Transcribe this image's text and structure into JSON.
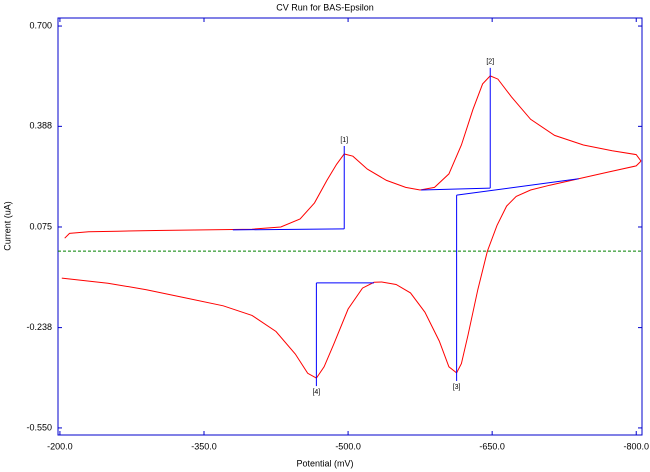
{
  "chart_data": {
    "type": "line",
    "title": "CV Run for BAS-Epsilon",
    "x_label": "Potential (mV)",
    "y_label": "Current (uA)",
    "xlim": [
      -198,
      -806
    ],
    "ylim": [
      -0.572,
      0.725
    ],
    "xticks": [
      {
        "value": -200,
        "label": "-200.0"
      },
      {
        "value": -350,
        "label": "-350.0"
      },
      {
        "value": -500,
        "label": "-500.0"
      },
      {
        "value": -650,
        "label": "-650.0"
      },
      {
        "value": -800,
        "label": "-800.0"
      }
    ],
    "yticks": [
      {
        "value": 0.7,
        "label": "0.700"
      },
      0.388,
      0.075,
      -0.238,
      {
        "value": -0.55,
        "label": "-0.550"
      }
    ],
    "axis_color": "#0000cc",
    "zero_line": {
      "value": 0,
      "color": "#008000"
    },
    "curves": [
      {
        "color": "#ff0000",
        "x": [
          -205,
          -210,
          -230,
          -260,
          -300,
          -350,
          -400,
          -430,
          -450,
          -465,
          -478,
          -488,
          -496,
          -505,
          -520,
          -540,
          -560,
          -575,
          -590,
          -605,
          -618,
          -630,
          -640,
          -648,
          -656,
          -670,
          -690,
          -715,
          -745,
          -775,
          -800,
          -805
        ],
        "values": [
          0.04,
          0.055,
          0.06,
          0.062,
          0.064,
          0.066,
          0.068,
          0.075,
          0.1,
          0.15,
          0.22,
          0.27,
          0.302,
          0.295,
          0.255,
          0.22,
          0.198,
          0.19,
          0.198,
          0.24,
          0.33,
          0.44,
          0.52,
          0.545,
          0.535,
          0.48,
          0.41,
          0.36,
          0.33,
          0.312,
          0.3,
          0.28
        ]
      },
      {
        "color": "#ff0000",
        "x": [
          -805,
          -800,
          -770,
          -740,
          -710,
          -690,
          -675,
          -665,
          -655,
          -645,
          -635,
          -625,
          -618,
          -613,
          -605,
          -595,
          -580,
          -565,
          -550,
          -535,
          -527,
          -515,
          -500,
          -485,
          -475,
          -467,
          -458,
          -445,
          -425,
          -400,
          -370,
          -330,
          -290,
          -250,
          -202
        ],
        "values": [
          0.28,
          0.265,
          0.245,
          0.225,
          0.205,
          0.19,
          0.17,
          0.14,
          0.08,
          0.0,
          -0.12,
          -0.26,
          -0.35,
          -0.379,
          -0.36,
          -0.28,
          -0.19,
          -0.13,
          -0.104,
          -0.096,
          -0.097,
          -0.115,
          -0.18,
          -0.29,
          -0.36,
          -0.395,
          -0.38,
          -0.32,
          -0.25,
          -0.2,
          -0.17,
          -0.145,
          -0.12,
          -0.1,
          -0.084
        ]
      }
    ],
    "peak_color": "#0000ff",
    "peaks": [
      {
        "label": "[1]",
        "x": -496,
        "y": 0.302,
        "baseline_x": -380,
        "baseline_y": [
          0.066,
          0.069
        ]
      },
      {
        "label": "[2]",
        "x": -648,
        "y": 0.545,
        "baseline_x": -576,
        "baseline_y": [
          0.19,
          0.196
        ]
      },
      {
        "label": "[3]",
        "x": -613,
        "y": -0.379,
        "baseline_x": -740,
        "baseline_y": [
          0.225,
          0.174
        ]
      },
      {
        "label": "[4]",
        "x": -467,
        "y": -0.395,
        "baseline_x": -527,
        "baseline_y": [
          -0.099,
          -0.099
        ]
      }
    ]
  }
}
